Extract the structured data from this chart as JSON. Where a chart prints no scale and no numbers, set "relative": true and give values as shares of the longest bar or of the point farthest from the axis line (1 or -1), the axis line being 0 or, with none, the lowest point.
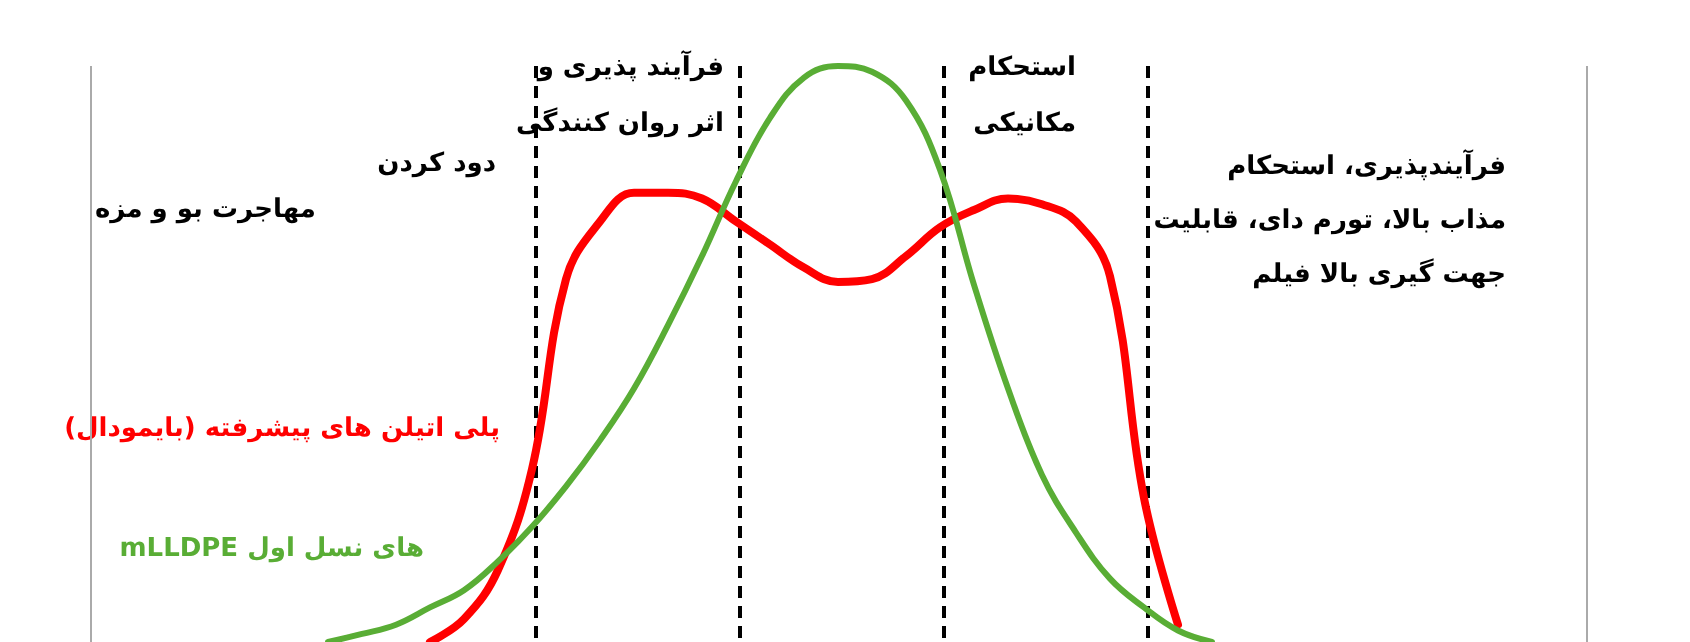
{
  "chart_data": {
    "type": "line",
    "relative": true,
    "legend": false,
    "grid": "x",
    "marker": "none",
    "line_style": "solid",
    "categories": [
      null,
      null,
      null,
      null,
      null,
      null,
      null,
      null,
      null,
      null,
      null,
      null,
      null,
      null,
      null,
      null,
      null,
      null,
      null,
      null,
      null,
      null,
      null,
      null,
      null,
      null,
      null,
      null,
      null,
      null,
      null,
      null,
      null,
      null,
      null,
      null,
      null,
      null,
      null,
      null,
      null,
      null,
      null,
      null,
      null
    ],
    "series": [
      {
        "name": "پلی اتیلن های پیشرفته (بایمودال)",
        "color": "#ff0000",
        "values": [
          null,
          null,
          null,
          null,
          null,
          null,
          null,
          null,
          null,
          null,
          0,
          0.04,
          0.125,
          0.3,
          0.63,
          0.73,
          0.78,
          0.78,
          0.77,
          0.73,
          0.69,
          0.65,
          0.625,
          0.63,
          0.67,
          0.72,
          0.75,
          0.77,
          0.76,
          0.73,
          0.635,
          0.25,
          0.03,
          null,
          null,
          null,
          null,
          null,
          null,
          null,
          null,
          null,
          null,
          null,
          null
        ]
      },
      {
        "name": "mLLDPE های نسل اول",
        "color": "#59ad35",
        "values": [
          null,
          null,
          null,
          null,
          null,
          null,
          null,
          0,
          0.014,
          0.03,
          0.06,
          0.09,
          0.14,
          0.2,
          0.27,
          0.35,
          0.44,
          0.55,
          0.67,
          0.8,
          0.91,
          0.98,
          1,
          0.99,
          0.94,
          0.82,
          0.62,
          0.44,
          0.29,
          0.19,
          0.11,
          0.06,
          0.02,
          0,
          null,
          null,
          null,
          null,
          null,
          null,
          null,
          null,
          null,
          null,
          null
        ]
      }
    ],
    "annotations": [
      "دود کردن",
      "مهاجرت بو و مزه",
      "فرآیند پذیری و\nاثر روان کنندگی",
      "استحکام\nمکانیکی",
      "فرآیندپذیری، استحکام\nمذاب بالا، تورم دای، قابلیت\nجهت گیری بالا فیلم"
    ]
  }
}
